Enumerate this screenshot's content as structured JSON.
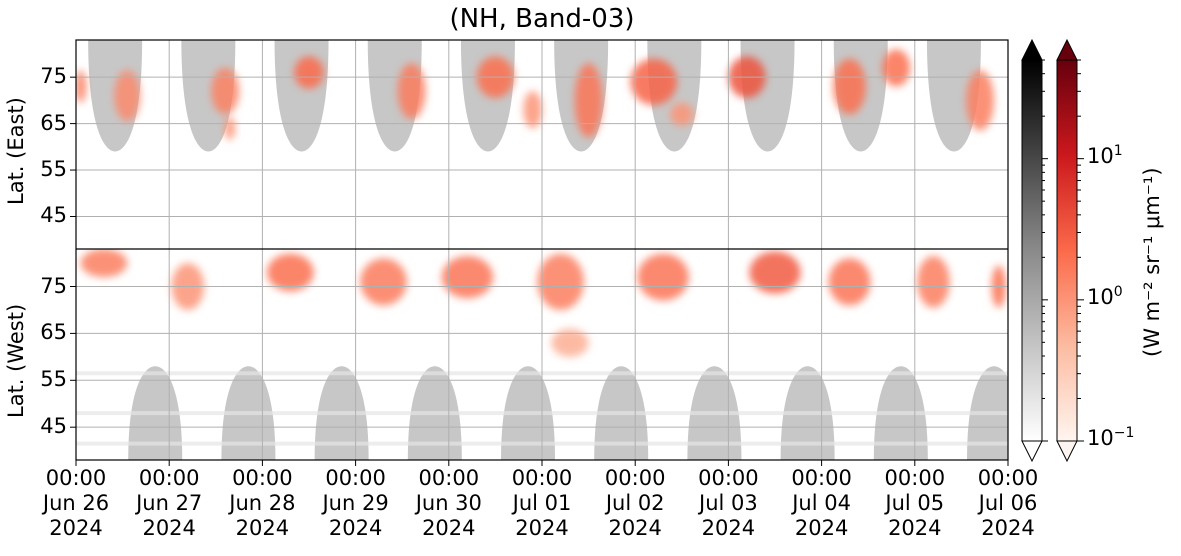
{
  "chart_data": {
    "type": "heatmap",
    "title": "(NH, Band-03)",
    "panels": [
      {
        "name": "East",
        "ylabel": "Lat. (East)",
        "y_ticks": [
          45,
          55,
          65,
          75
        ],
        "ylim": [
          38,
          83
        ]
      },
      {
        "name": "West",
        "ylabel": "Lat. (West)",
        "y_ticks": [
          75,
          65,
          55,
          45
        ],
        "ylim": [
          83,
          38
        ]
      }
    ],
    "x_ticks": [
      {
        "time": "00:00",
        "date": "Jun 26",
        "year": "2024"
      },
      {
        "time": "00:00",
        "date": "Jun 27",
        "year": "2024"
      },
      {
        "time": "00:00",
        "date": "Jun 28",
        "year": "2024"
      },
      {
        "time": "00:00",
        "date": "Jun 29",
        "year": "2024"
      },
      {
        "time": "00:00",
        "date": "Jun 30",
        "year": "2024"
      },
      {
        "time": "00:00",
        "date": "Jul 01",
        "year": "2024"
      },
      {
        "time": "00:00",
        "date": "Jul 02",
        "year": "2024"
      },
      {
        "time": "00:00",
        "date": "Jul 03",
        "year": "2024"
      },
      {
        "time": "00:00",
        "date": "Jul 04",
        "year": "2024"
      },
      {
        "time": "00:00",
        "date": "Jul 05",
        "year": "2024"
      },
      {
        "time": "00:00",
        "date": "Jul 06",
        "year": "2024"
      }
    ],
    "xlim": [
      "2024-06-26 00:00",
      "2024-07-06 00:00"
    ],
    "grid": true,
    "scale": "log",
    "colorbars": [
      {
        "name": "grey",
        "colormap": "Greys",
        "range": [
          0.1,
          50
        ],
        "extend": "both"
      },
      {
        "name": "red",
        "colormap": "Reds",
        "range": [
          0.1,
          50
        ],
        "extend": "both",
        "tick_labels": [
          {
            "base": "10",
            "exp": "1",
            "value": 10
          },
          {
            "base": "10",
            "exp": "0",
            "value": 1
          },
          {
            "base": "10",
            "exp": "−1",
            "value": 0.1
          }
        ],
        "label": "(W m⁻² sr⁻¹ μm⁻¹)"
      }
    ],
    "east_activity": [
      {
        "day": 0.05,
        "lat": 73,
        "width": 0.12,
        "height": 7,
        "value": 1.5
      },
      {
        "day": 0.55,
        "lat": 71,
        "width": 0.28,
        "height": 11,
        "value": 1.2
      },
      {
        "day": 1.6,
        "lat": 72,
        "width": 0.3,
        "height": 10,
        "value": 1.4
      },
      {
        "day": 1.65,
        "lat": 64,
        "width": 0.12,
        "height": 5,
        "value": 1.0
      },
      {
        "day": 2.5,
        "lat": 76,
        "width": 0.32,
        "height": 7,
        "value": 2.2
      },
      {
        "day": 3.6,
        "lat": 72,
        "width": 0.3,
        "height": 12,
        "value": 1.6
      },
      {
        "day": 4.5,
        "lat": 75,
        "width": 0.4,
        "height": 9,
        "value": 2.0
      },
      {
        "day": 4.9,
        "lat": 68,
        "width": 0.2,
        "height": 8,
        "value": 1.0
      },
      {
        "day": 5.5,
        "lat": 70,
        "width": 0.3,
        "height": 16,
        "value": 1.8
      },
      {
        "day": 6.2,
        "lat": 74,
        "width": 0.5,
        "height": 10,
        "value": 2.5
      },
      {
        "day": 6.5,
        "lat": 67,
        "width": 0.25,
        "height": 5,
        "value": 1.0
      },
      {
        "day": 7.2,
        "lat": 75,
        "width": 0.4,
        "height": 9,
        "value": 3.5
      },
      {
        "day": 8.3,
        "lat": 73,
        "width": 0.35,
        "height": 12,
        "value": 2.0
      },
      {
        "day": 8.8,
        "lat": 77,
        "width": 0.3,
        "height": 8,
        "value": 2.0
      },
      {
        "day": 9.7,
        "lat": 70,
        "width": 0.3,
        "height": 13,
        "value": 1.5
      }
    ],
    "west_activity": [
      {
        "day": 0.3,
        "lat": 80,
        "width": 0.5,
        "height": 6,
        "value": 1.5
      },
      {
        "day": 1.2,
        "lat": 75,
        "width": 0.35,
        "height": 10,
        "value": 1.0
      },
      {
        "day": 2.3,
        "lat": 78,
        "width": 0.5,
        "height": 8,
        "value": 2.0
      },
      {
        "day": 3.3,
        "lat": 76,
        "width": 0.5,
        "height": 10,
        "value": 1.6
      },
      {
        "day": 4.2,
        "lat": 77,
        "width": 0.55,
        "height": 9,
        "value": 1.8
      },
      {
        "day": 5.2,
        "lat": 76,
        "width": 0.5,
        "height": 12,
        "value": 1.5
      },
      {
        "day": 5.3,
        "lat": 63,
        "width": 0.4,
        "height": 6,
        "value": 0.6
      },
      {
        "day": 6.3,
        "lat": 77,
        "width": 0.55,
        "height": 10,
        "value": 1.8
      },
      {
        "day": 7.5,
        "lat": 78,
        "width": 0.55,
        "height": 9,
        "value": 3.0
      },
      {
        "day": 8.3,
        "lat": 76,
        "width": 0.45,
        "height": 10,
        "value": 1.8
      },
      {
        "day": 9.2,
        "lat": 76,
        "width": 0.35,
        "height": 11,
        "value": 1.5
      },
      {
        "day": 9.9,
        "lat": 75,
        "width": 0.15,
        "height": 9,
        "value": 2.0
      }
    ],
    "daylight_mask_color": "#c4c4c4"
  },
  "colors": {
    "accent_red": "#d7301f",
    "mask_grey": "#c4c4c4",
    "grid": "#b0b0b0"
  }
}
